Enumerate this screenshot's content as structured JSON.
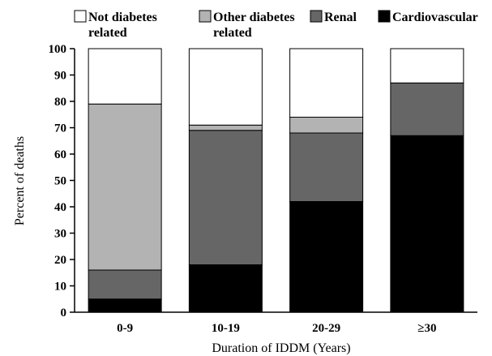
{
  "chart_data": {
    "type": "bar",
    "stacked": true,
    "title": "",
    "xlabel": "Duration of IDDM (Years)",
    "ylabel": "Percent of deaths",
    "ylim": [
      0,
      100
    ],
    "yticks": [
      0,
      10,
      20,
      30,
      40,
      50,
      60,
      70,
      80,
      90,
      100
    ],
    "grid": false,
    "legend_position": "top",
    "categories": [
      "0-9",
      "10-19",
      "20-29",
      "≥30"
    ],
    "series": [
      {
        "name": "Cardiovascular",
        "color": "#000000",
        "values": [
          5,
          18,
          42,
          67
        ]
      },
      {
        "name": "Renal",
        "color": "#666666",
        "values": [
          11,
          51,
          26,
          20
        ]
      },
      {
        "name": "Other diabetes related",
        "legend_lines": [
          "Other diabetes",
          "related"
        ],
        "color": "#b3b3b3",
        "values": [
          63,
          2,
          6,
          0
        ]
      },
      {
        "name": "Not diabetes related",
        "legend_lines": [
          "Not diabetes",
          "related"
        ],
        "color": "#ffffff",
        "values": [
          21,
          29,
          26,
          13
        ]
      }
    ]
  }
}
